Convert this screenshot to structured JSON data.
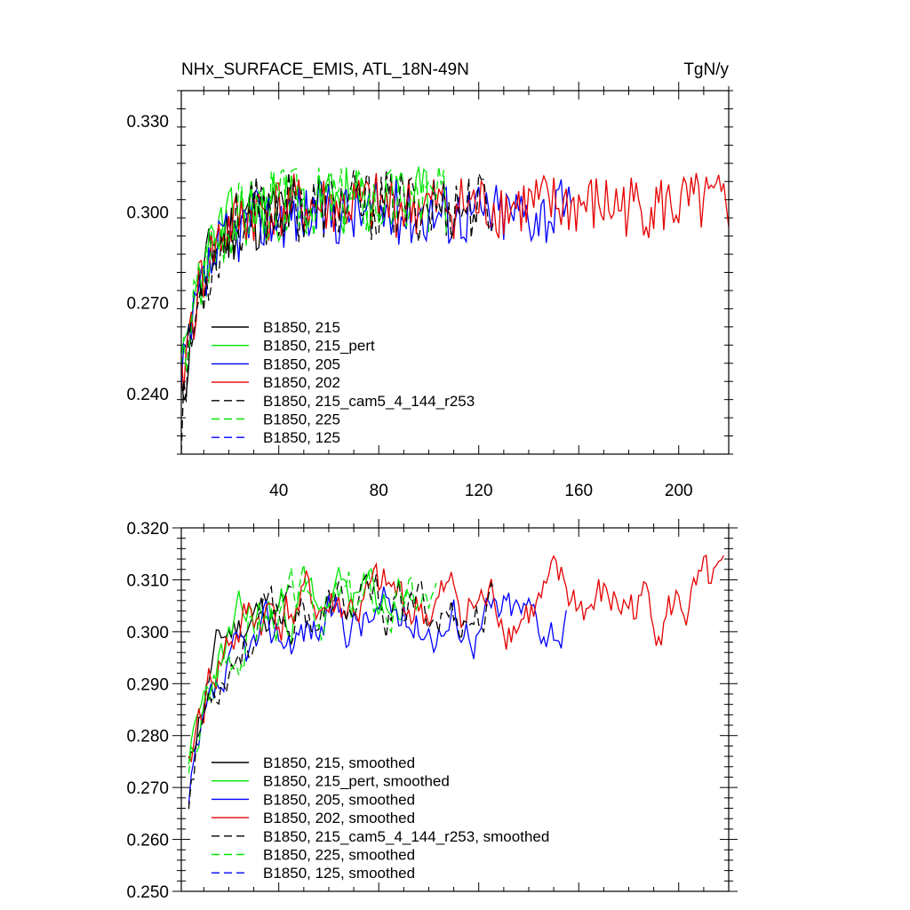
{
  "figure": {
    "title_left": "NHx_SURFACE_EMIS, ATL_18N-49N",
    "title_right": "TgN/y"
  },
  "chart_data": [
    {
      "type": "line",
      "panel": "top",
      "title": "NHx_SURFACE_EMIS, ATL_18N-49N",
      "units": "TgN/y",
      "xlim": [
        1,
        220
      ],
      "ylim": [
        0.22,
        0.34
      ],
      "x_ticks": [
        40,
        80,
        120,
        160,
        200
      ],
      "y_ticks": [
        "0.240",
        "0.270",
        "0.300",
        "0.330"
      ],
      "x_tick_labels": [
        "40",
        "80",
        "120",
        "160",
        "200"
      ],
      "legend_position": "lower-left",
      "series": [
        {
          "name": "B1850, 215",
          "color": "#000000",
          "dash": false,
          "start": 1,
          "length": 45,
          "seed": 11,
          "base": 0.3,
          "rise": 0.065,
          "tau": 8,
          "noise": 0.012
        },
        {
          "name": "B1850, 215_pert",
          "color": "#00e600",
          "dash": false,
          "start": 1,
          "length": 100,
          "seed": 23,
          "base": 0.303,
          "rise": 0.06,
          "tau": 9,
          "noise": 0.012
        },
        {
          "name": "B1850, 205",
          "color": "#0000ff",
          "dash": false,
          "start": 1,
          "length": 157,
          "seed": 37,
          "base": 0.3,
          "rise": 0.06,
          "tau": 10,
          "noise": 0.011
        },
        {
          "name": "B1850, 202",
          "color": "#e60000",
          "dash": false,
          "start": 1,
          "length": 220,
          "seed": 41,
          "base": 0.302,
          "rise": 0.06,
          "tau": 9,
          "noise": 0.011
        },
        {
          "name": "B1850, 215_cam5_4_144_r253",
          "color": "#000000",
          "dash": true,
          "start": 1,
          "length": 126,
          "seed": 53,
          "base": 0.302,
          "rise": 0.07,
          "tau": 9,
          "noise": 0.012
        },
        {
          "name": "B1850, 225",
          "color": "#00e600",
          "dash": true,
          "start": 1,
          "length": 107,
          "seed": 67,
          "base": 0.304,
          "rise": 0.06,
          "tau": 9,
          "noise": 0.012
        },
        {
          "name": "B1850, 125",
          "color": "#0000ff",
          "dash": true,
          "start": 1,
          "length": 0,
          "seed": 71,
          "base": 0.3,
          "rise": 0.06,
          "tau": 9,
          "noise": 0.012
        }
      ]
    },
    {
      "type": "line",
      "panel": "bottom",
      "xlim": [
        1,
        220
      ],
      "ylim": [
        0.25,
        0.32
      ],
      "x_ticks": [
        40,
        80,
        120,
        160,
        200
      ],
      "y_ticks": [
        "0.250",
        "0.260",
        "0.270",
        "0.280",
        "0.290",
        "0.300",
        "0.310",
        "0.320"
      ],
      "legend_position": "lower-left",
      "series": [
        {
          "name": "B1850, 215, smoothed",
          "color": "#000000",
          "dash": false,
          "start": 4,
          "length": 42,
          "seed": 11,
          "base": 0.305,
          "rise": 0.045,
          "tau": 9,
          "noise": 0.0035
        },
        {
          "name": "B1850, 215_pert, smoothed",
          "color": "#00e600",
          "dash": false,
          "start": 4,
          "length": 90,
          "seed": 23,
          "base": 0.306,
          "rise": 0.045,
          "tau": 12,
          "noise": 0.004
        },
        {
          "name": "B1850, 205, smoothed",
          "color": "#0000ff",
          "dash": false,
          "start": 4,
          "length": 152,
          "seed": 37,
          "base": 0.303,
          "rise": 0.045,
          "tau": 16,
          "noise": 0.004
        },
        {
          "name": "B1850, 202, smoothed",
          "color": "#e60000",
          "dash": false,
          "start": 4,
          "length": 215,
          "seed": 41,
          "base": 0.305,
          "rise": 0.045,
          "tau": 10,
          "noise": 0.0045
        },
        {
          "name": "B1850, 215_cam5_4_144_r253, smoothed",
          "color": "#000000",
          "dash": true,
          "start": 4,
          "length": 123,
          "seed": 53,
          "base": 0.304,
          "rise": 0.045,
          "tau": 11,
          "noise": 0.004
        },
        {
          "name": "B1850, 225, smoothed",
          "color": "#00e600",
          "dash": true,
          "start": 4,
          "length": 100,
          "seed": 67,
          "base": 0.306,
          "rise": 0.045,
          "tau": 12,
          "noise": 0.004
        },
        {
          "name": "B1850, 125, smoothed",
          "color": "#0000ff",
          "dash": true,
          "start": 4,
          "length": 0,
          "seed": 71,
          "base": 0.3,
          "rise": 0.045,
          "tau": 12,
          "noise": 0.004
        }
      ]
    }
  ]
}
